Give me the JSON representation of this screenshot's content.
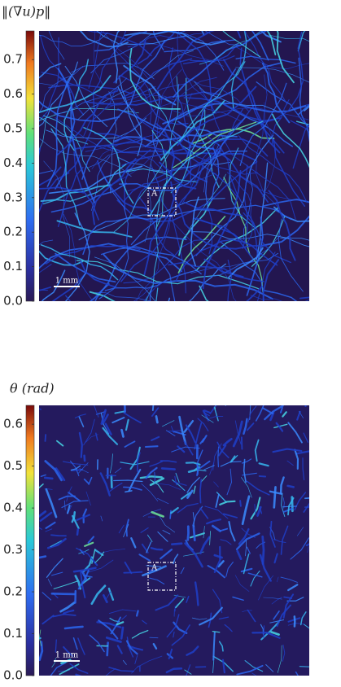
{
  "chart_data": [
    {
      "type": "heatmap",
      "title": "‖(∇u)p‖",
      "ylim": [
        0,
        0.783
      ],
      "yticks": [
        {
          "value": 0,
          "label": "0.0"
        },
        0.1,
        0.2,
        0.3,
        0.4,
        0.5,
        0.6,
        0.7
      ],
      "annotations": [
        "A",
        "1 mm"
      ]
    },
    {
      "type": "heatmap",
      "title": "θ (rad)",
      "ylim": [
        0,
        0.645
      ],
      "yticks": [
        {
          "value": 0,
          "label": "0.0"
        },
        0.1,
        0.2,
        0.3,
        0.4,
        0.5,
        0.6
      ],
      "annotations": [
        "A",
        "1 mm"
      ]
    }
  ]
}
